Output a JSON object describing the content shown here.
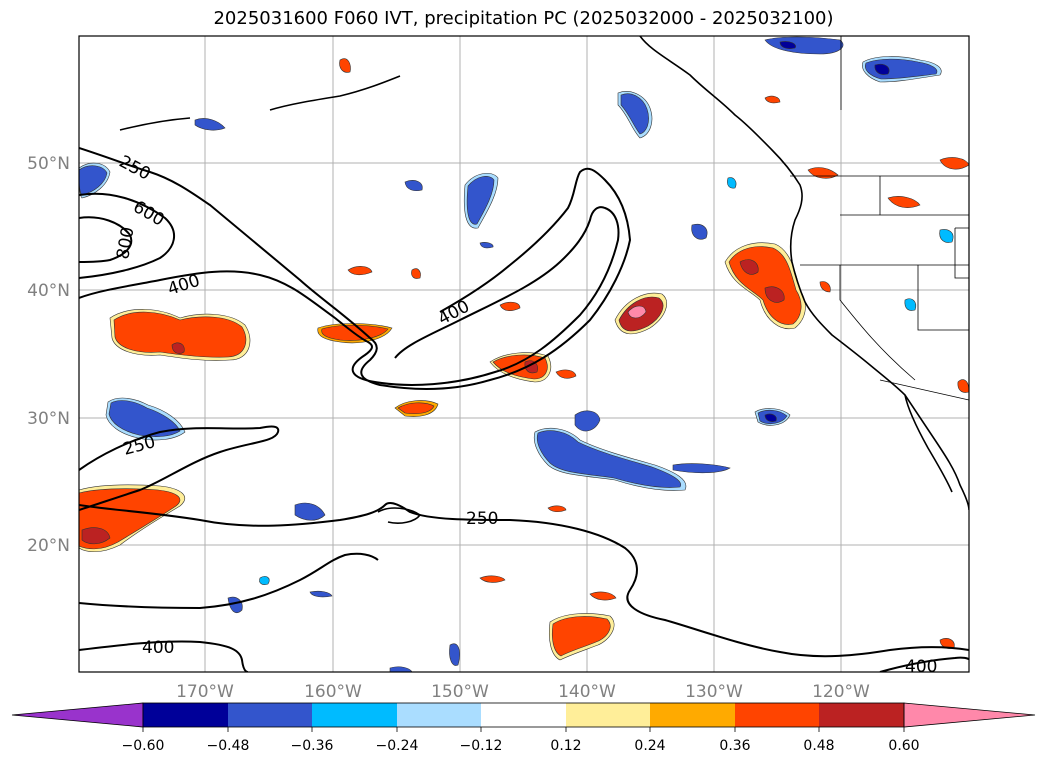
{
  "title": "2025031600 F060 IVT, precipitation PC (2025032000 - 2025032100)",
  "lat_labels": [
    "50°N",
    "40°N",
    "30°N",
    "20°N"
  ],
  "lon_labels": [
    "170°W",
    "160°W",
    "150°W",
    "140°W",
    "130°W",
    "120°W"
  ],
  "contour_labels": [
    "250",
    "600",
    "800",
    "400",
    "400",
    "250",
    "250",
    "400",
    "400"
  ],
  "colorbar": {
    "ticks": [
      "−0.60",
      "−0.48",
      "−0.36",
      "−0.24",
      "−0.12",
      "0.12",
      "0.24",
      "0.36",
      "0.48",
      "0.60"
    ],
    "colors": [
      "#9933cc",
      "#000099",
      "#3355cc",
      "#00bbff",
      "#aaddff",
      "#ffffff",
      "#ffee99",
      "#ffaa00",
      "#ff4400",
      "#bb2222",
      "#ff88aa"
    ]
  },
  "colors": {
    "pos_low": "#ffee99",
    "pos_mid": "#ffaa00",
    "pos_high": "#ff4400",
    "pos_vhigh": "#bb2222",
    "pos_max": "#ff88aa",
    "neg_low": "#aaddff",
    "neg_mid": "#00bbff",
    "neg_high": "#3355cc",
    "neg_vhigh": "#000099"
  }
}
